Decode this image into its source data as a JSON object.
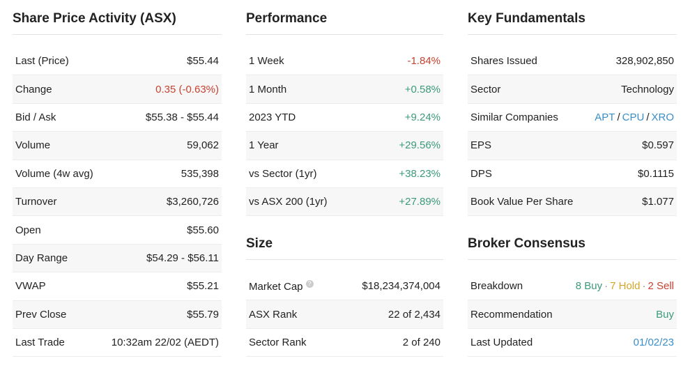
{
  "share_price_activity": {
    "title": "Share Price Activity (ASX)",
    "rows": [
      [
        "Last (Price)",
        "$55.44"
      ],
      [
        "Change",
        "0.35 (-0.63%)"
      ],
      [
        "Bid / Ask",
        "$55.38 - $55.44"
      ],
      [
        "Volume",
        "59,062"
      ],
      [
        "Volume (4w avg)",
        "535,398"
      ],
      [
        "Turnover",
        "$3,260,726"
      ],
      [
        "Open",
        "$55.60"
      ],
      [
        "Day Range",
        "$54.29 - $56.11"
      ],
      [
        "VWAP",
        "$55.21"
      ],
      [
        "Prev Close",
        "$55.79"
      ],
      [
        "Last Trade",
        "10:32am 22/02 (AEDT)"
      ]
    ]
  },
  "performance": {
    "title": "Performance",
    "rows": [
      [
        "1 Week",
        "-1.84%"
      ],
      [
        "1 Month",
        "+0.58%"
      ],
      [
        "2023 YTD",
        "+9.24%"
      ],
      [
        "1 Year",
        "+29.56%"
      ],
      [
        "vs Sector (1yr)",
        "+38.23%"
      ],
      [
        "vs ASX 200 (1yr)",
        "+27.89%"
      ]
    ]
  },
  "size": {
    "title": "Size",
    "rows": [
      [
        "Market Cap",
        "$18,234,374,004"
      ],
      [
        "ASX Rank",
        "22 of 2,434"
      ],
      [
        "Sector Rank",
        "2 of 240"
      ]
    ]
  },
  "key_fundamentals": {
    "title": "Key Fundamentals",
    "separator": "/",
    "rows": [
      [
        "Shares Issued",
        "328,902,850"
      ],
      [
        "Sector",
        "Technology"
      ],
      [
        "Similar Companies",
        [
          "APT",
          "CPU",
          "XRO"
        ]
      ],
      [
        "EPS",
        "$0.597"
      ],
      [
        "DPS",
        "$0.1115"
      ],
      [
        "Book Value Per Share",
        "$1.077"
      ]
    ]
  },
  "broker_consensus": {
    "title": "Broker Consensus",
    "separator": "·",
    "rows": [
      [
        "Breakdown",
        [
          "8 Buy",
          "7 Hold",
          "2 Sell"
        ]
      ],
      [
        "Recommendation",
        "Buy"
      ],
      [
        "Last Updated",
        "01/02/23"
      ]
    ]
  }
}
